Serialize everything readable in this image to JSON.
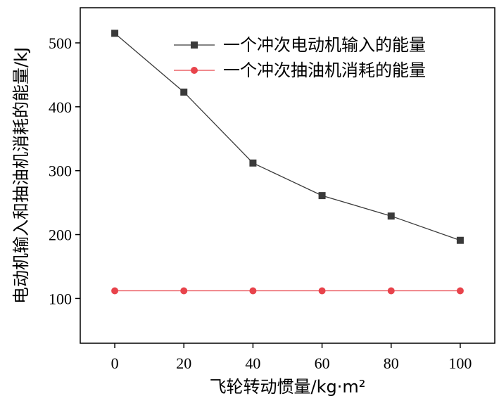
{
  "chart_data": {
    "type": "line",
    "xlabel": "飞轮转动惯量/kg·m²",
    "ylabel": "电动机输入和抽油机消耗的能量/kJ",
    "x": [
      0,
      20,
      40,
      60,
      80,
      100
    ],
    "xlim": [
      -10,
      110
    ],
    "ylim": [
      30,
      555
    ],
    "xticks": [
      0,
      20,
      40,
      60,
      80,
      100
    ],
    "yticks": [
      100,
      200,
      300,
      400,
      500
    ],
    "grid": false,
    "legend_position": "top-right",
    "series": [
      {
        "name": "一个冲次电动机输入的能量",
        "values": [
          515,
          423,
          312,
          261,
          229,
          191
        ],
        "color": "#3a3a3a",
        "marker": "square"
      },
      {
        "name": "一个冲次抽油机消耗的能量",
        "values": [
          112,
          112,
          112,
          112,
          112,
          112
        ],
        "color": "#e8434b",
        "marker": "circle"
      }
    ]
  }
}
